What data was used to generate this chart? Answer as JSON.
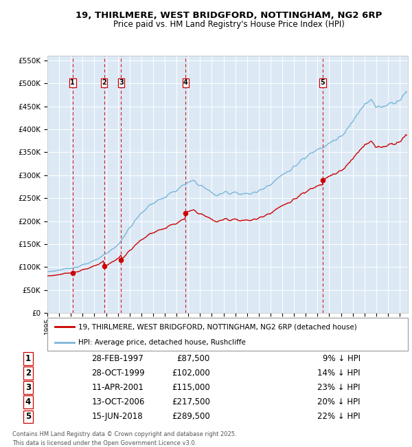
{
  "title1": "19, THIRLMERE, WEST BRIDGFORD, NOTTINGHAM, NG2 6RP",
  "title2": "Price paid vs. HM Land Registry's House Price Index (HPI)",
  "legend_line1": "19, THIRLMERE, WEST BRIDGFORD, NOTTINGHAM, NG2 6RP (detached house)",
  "legend_line2": "HPI: Average price, detached house, Rushcliffe",
  "footer": "Contains HM Land Registry data © Crown copyright and database right 2025.\nThis data is licensed under the Open Government Licence v3.0.",
  "sale_points": [
    {
      "num": 1,
      "date_dec": 1997.15,
      "price": 87500,
      "label": "28-FEB-1997",
      "pct": "9% ↓ HPI"
    },
    {
      "num": 2,
      "date_dec": 1999.83,
      "price": 102000,
      "label": "28-OCT-1999",
      "pct": "14% ↓ HPI"
    },
    {
      "num": 3,
      "date_dec": 2001.28,
      "price": 115000,
      "label": "11-APR-2001",
      "pct": "23% ↓ HPI"
    },
    {
      "num": 4,
      "date_dec": 2006.78,
      "price": 217500,
      "label": "13-OCT-2006",
      "pct": "20% ↓ HPI"
    },
    {
      "num": 5,
      "date_dec": 2018.45,
      "price": 289500,
      "label": "15-JUN-2018",
      "pct": "22% ↓ HPI"
    }
  ],
  "hpi_color": "#7ab5d8",
  "sale_color": "#cc0000",
  "vline_color": "#cc0000",
  "background_color": "#dce9f5",
  "grid_color": "#ffffff",
  "ylim": [
    0,
    560000
  ],
  "yticks": [
    0,
    50000,
    100000,
    150000,
    200000,
    250000,
    300000,
    350000,
    400000,
    450000,
    500000,
    550000
  ],
  "xlim_start": 1995.0,
  "xlim_end": 2025.7
}
